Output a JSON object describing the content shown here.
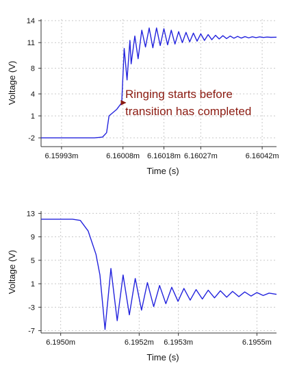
{
  "chart_data": [
    {
      "type": "line",
      "title": "",
      "xlabel": "Time (s)",
      "ylabel": "Voltage (V)",
      "xlim": [
        6.15988,
        6.160455
      ],
      "ylim": [
        -3.2,
        14.2
      ],
      "x_ticks": [
        6.15993,
        6.16008,
        6.16018,
        6.16027,
        6.16042
      ],
      "x_tick_labels": [
        "6.15993m",
        "6.16008m",
        "6.16018m",
        "6.16027m",
        "6.16042m"
      ],
      "y_ticks": [
        -2,
        1,
        4,
        7.5,
        11,
        14
      ],
      "y_tick_labels": [
        "-2",
        "1",
        "4",
        "8",
        "11",
        "14"
      ],
      "grid": true,
      "series_color": "#2222dd",
      "annotation": {
        "lines": [
          "Ringing starts before",
          "transition has completed"
        ],
        "color": "#8b1a10",
        "target": [
          6.160078,
          2.8
        ]
      },
      "series": [
        {
          "x": [
            6.15988,
            6.16001,
            6.16003,
            6.16004,
            6.160046,
            6.160065,
            6.160077,
            6.160083,
            6.16009,
            6.160097,
            6.1601,
            6.160109,
            6.160117,
            6.160126,
            6.160135,
            6.160144,
            6.160153,
            6.160162,
            6.160171,
            6.16018,
            6.160189,
            6.160198,
            6.160207,
            6.160216,
            6.160225,
            6.160234,
            6.160243,
            6.160252,
            6.160261,
            6.16027,
            6.160279,
            6.160288,
            6.160297,
            6.160306,
            6.160315,
            6.160324,
            6.160333,
            6.160342,
            6.160351,
            6.16036,
            6.160369,
            6.160378,
            6.160387,
            6.160396,
            6.160405,
            6.160414,
            6.160423,
            6.160432,
            6.160441,
            6.160455
          ],
          "y": [
            -2.0,
            -2.0,
            -1.9,
            -1.3,
            1.0,
            1.9,
            2.8,
            10.2,
            5.9,
            11.3,
            8.1,
            11.9,
            8.8,
            12.7,
            10.4,
            13.0,
            10.3,
            13.0,
            10.6,
            12.9,
            10.7,
            12.7,
            10.8,
            12.5,
            11.0,
            12.4,
            11.1,
            12.3,
            11.2,
            12.2,
            11.3,
            12.1,
            11.4,
            12.0,
            11.5,
            11.95,
            11.55,
            11.9,
            11.6,
            11.85,
            11.62,
            11.82,
            11.65,
            11.8,
            11.68,
            11.78,
            11.7,
            11.76,
            11.72,
            11.74
          ]
        }
      ]
    },
    {
      "type": "line",
      "title": "",
      "xlabel": "Time (s)",
      "ylabel": "Voltage (V)",
      "xlim": [
        6.19495,
        6.19555
      ],
      "ylim": [
        -7.4,
        13.4
      ],
      "x_ticks": [
        6.195,
        6.1952,
        6.1953,
        6.1955
      ],
      "x_tick_labels": [
        "6.1950m",
        "6.1952m",
        "6.1953m",
        "6.1955m"
      ],
      "y_ticks": [
        -7,
        -3,
        1,
        5,
        9,
        13
      ],
      "y_tick_labels": [
        "-7",
        "-3",
        "1",
        "5",
        "9",
        "13"
      ],
      "grid": true,
      "series_color": "#2222dd",
      "series": [
        {
          "x": [
            6.19495,
            6.19503,
            6.19505,
            6.19507,
            6.19509,
            6.1951,
            6.195113,
            6.195128,
            6.195144,
            6.195159,
            6.195175,
            6.19519,
            6.195206,
            6.195221,
            6.195237,
            6.195252,
            6.195268,
            6.195283,
            6.195299,
            6.195314,
            6.19533,
            6.195345,
            6.195361,
            6.195376,
            6.195392,
            6.195407,
            6.195423,
            6.195438,
            6.195454,
            6.195469,
            6.195485,
            6.1955,
            6.195516,
            6.195531,
            6.19555
          ],
          "y": [
            12.0,
            12.0,
            11.8,
            10.0,
            6.0,
            2.5,
            -6.8,
            3.6,
            -5.3,
            2.5,
            -4.3,
            1.9,
            -3.5,
            1.2,
            -2.9,
            0.7,
            -2.4,
            0.4,
            -2.0,
            0.2,
            -1.8,
            0.0,
            -1.6,
            -0.1,
            -1.4,
            -0.2,
            -1.3,
            -0.3,
            -1.2,
            -0.4,
            -1.1,
            -0.5,
            -1.0,
            -0.6,
            -0.8
          ]
        }
      ]
    }
  ]
}
